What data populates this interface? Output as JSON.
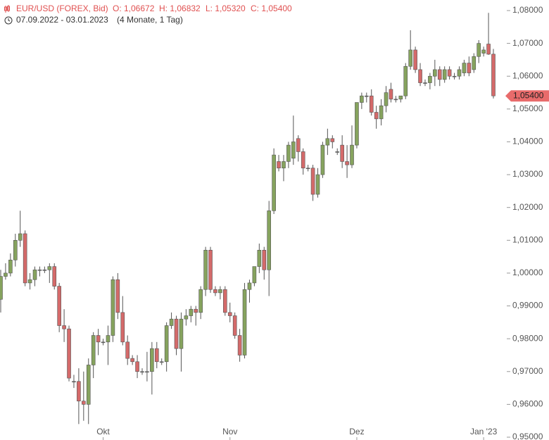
{
  "header": {
    "title": "EUR/USD (FOREX, Bid)",
    "ohlc": [
      "O: 1,06672",
      "H: 1,06832",
      "L: 1,05320",
      "C: 1,05400"
    ],
    "range": "07.09.2022 - 03.01.2023",
    "span": "(4 Monate, 1 Tag)"
  },
  "chart_data": {
    "type": "candlestick",
    "up_color": "#86a35e",
    "down_color": "#d46a6a",
    "last_price_label": "1,05400",
    "open": [
      0.992,
      0.999,
      1.0,
      1.004,
      1.01,
      1.012,
      0.997,
      0.998,
      1.001,
      1.001,
      1.001,
      1.002,
      0.996,
      0.984,
      0.983,
      0.967,
      0.967,
      0.961,
      0.96,
      0.972,
      0.981,
      0.979,
      0.979,
      0.981,
      0.998,
      0.988,
      0.979,
      0.974,
      0.973,
      0.97,
      0.97,
      0.97,
      0.977,
      0.973,
      0.973,
      0.984,
      0.986,
      0.977,
      0.986,
      0.987,
      0.989,
      0.988,
      0.995,
      1.007,
      0.995,
      0.994,
      0.995,
      0.988,
      0.987,
      0.981,
      0.975,
      0.995,
      0.997,
      1.002,
      1.007,
      1.001,
      1.019,
      1.034,
      1.032,
      1.034,
      1.035,
      1.041,
      1.037,
      1.032,
      1.032,
      1.024,
      1.03,
      1.039,
      1.041,
      1.037,
      1.039,
      1.034,
      1.033,
      1.039,
      1.052,
      1.054,
      1.054,
      1.049,
      1.047,
      1.051,
      1.056,
      1.053,
      1.053,
      1.054,
      1.063,
      1.068,
      1.062,
      1.058,
      1.058,
      1.06,
      1.062,
      1.059,
      1.062,
      1.06,
      1.06,
      1.061,
      1.064,
      1.062,
      1.066,
      1.067,
      1.0698,
      1.06672
    ],
    "high": [
      1.001,
      1.003,
      1.006,
      1.012,
      1.019,
      1.013,
      1.0,
      1.002,
      1.002,
      1.002,
      1.003,
      1.003,
      0.997,
      0.989,
      0.984,
      0.969,
      0.971,
      0.97,
      0.974,
      0.982,
      0.983,
      0.98,
      0.984,
      0.999,
      1.0,
      0.993,
      0.981,
      0.975,
      0.975,
      0.971,
      0.976,
      0.979,
      0.979,
      0.974,
      0.985,
      0.988,
      0.987,
      0.988,
      0.989,
      0.99,
      0.99,
      0.996,
      1.008,
      1.008,
      0.996,
      0.996,
      0.996,
      0.991,
      0.988,
      0.983,
      0.997,
      0.998,
      1.002,
      1.009,
      1.008,
      1.022,
      1.038,
      1.036,
      1.036,
      1.04,
      1.048,
      1.042,
      1.038,
      1.033,
      1.033,
      1.032,
      1.04,
      1.044,
      1.042,
      1.038,
      1.042,
      1.039,
      1.045,
      1.052,
      1.055,
      1.055,
      1.056,
      1.051,
      1.053,
      1.057,
      1.058,
      1.054,
      1.054,
      1.064,
      1.074,
      1.069,
      1.064,
      1.059,
      1.061,
      1.065,
      1.063,
      1.063,
      1.063,
      1.061,
      1.063,
      1.065,
      1.066,
      1.067,
      1.071,
      1.069,
      1.0793,
      1.06832
    ],
    "low": [
      0.988,
      0.998,
      0.999,
      1.002,
      1.008,
      0.996,
      0.995,
      0.996,
      0.999,
      1.0,
      0.997,
      0.995,
      0.982,
      0.979,
      0.967,
      0.965,
      0.954,
      0.955,
      0.954,
      0.968,
      0.975,
      0.978,
      0.972,
      0.979,
      0.986,
      0.978,
      0.972,
      0.972,
      0.968,
      0.969,
      0.967,
      0.963,
      0.971,
      0.972,
      0.97,
      0.983,
      0.975,
      0.97,
      0.984,
      0.985,
      0.984,
      0.986,
      0.993,
      0.994,
      0.993,
      0.992,
      0.987,
      0.985,
      0.98,
      0.973,
      0.974,
      0.991,
      0.996,
      1.0,
      0.998,
      0.993,
      1.018,
      1.031,
      1.028,
      1.032,
      1.033,
      1.034,
      1.03,
      1.031,
      1.022,
      1.023,
      1.029,
      1.036,
      1.038,
      1.036,
      1.032,
      1.029,
      1.032,
      1.038,
      1.05,
      1.052,
      1.048,
      1.044,
      1.045,
      1.049,
      1.052,
      1.052,
      1.052,
      1.053,
      1.062,
      1.061,
      1.057,
      1.057,
      1.056,
      1.057,
      1.057,
      1.058,
      1.059,
      1.059,
      1.059,
      1.06,
      1.06,
      1.061,
      1.064,
      1.066,
      1.0665,
      1.0532
    ],
    "close": [
      0.999,
      1.0,
      1.004,
      1.01,
      1.012,
      0.997,
      0.998,
      1.001,
      1.001,
      1.001,
      1.002,
      0.996,
      0.984,
      0.983,
      0.968,
      0.967,
      0.961,
      0.96,
      0.972,
      0.981,
      0.979,
      0.979,
      0.981,
      0.998,
      0.988,
      0.979,
      0.974,
      0.973,
      0.97,
      0.97,
      0.97,
      0.977,
      0.973,
      0.973,
      0.984,
      0.986,
      0.977,
      0.986,
      0.987,
      0.989,
      0.988,
      0.995,
      1.007,
      0.995,
      0.994,
      0.995,
      0.988,
      0.987,
      0.981,
      0.975,
      0.995,
      0.997,
      1.002,
      1.007,
      1.001,
      1.019,
      1.036,
      1.032,
      1.034,
      1.039,
      1.04,
      1.037,
      1.032,
      1.032,
      1.024,
      1.03,
      1.039,
      1.041,
      1.04,
      1.037,
      1.034,
      1.033,
      1.039,
      1.052,
      1.054,
      1.054,
      1.049,
      1.047,
      1.051,
      1.055,
      1.053,
      1.053,
      1.054,
      1.063,
      1.068,
      1.062,
      1.058,
      1.058,
      1.06,
      1.062,
      1.059,
      1.062,
      1.06,
      1.06,
      1.062,
      1.064,
      1.061,
      1.066,
      1.07,
      1.068,
      1.0667,
      1.054
    ],
    "xticks": [
      {
        "value": 21,
        "label": "Okt"
      },
      {
        "value": 47,
        "label": "Nov"
      },
      {
        "value": 73,
        "label": "Dez"
      },
      {
        "value": 99,
        "label": "Jan '23"
      }
    ],
    "ylim": [
      0.95,
      1.08
    ],
    "yticks": [
      {
        "value": 0.95,
        "label": "0,95000"
      },
      {
        "value": 0.96,
        "label": "0,96000"
      },
      {
        "value": 0.97,
        "label": "0,97000"
      },
      {
        "value": 0.98,
        "label": "0,98000"
      },
      {
        "value": 0.99,
        "label": "0,99000"
      },
      {
        "value": 1.0,
        "label": "1,00000"
      },
      {
        "value": 1.01,
        "label": "1,01000"
      },
      {
        "value": 1.02,
        "label": "1,02000"
      },
      {
        "value": 1.03,
        "label": "1,03000"
      },
      {
        "value": 1.04,
        "label": "1,04000"
      },
      {
        "value": 1.05,
        "label": "1,05000"
      },
      {
        "value": 1.06,
        "label": "1,06000"
      },
      {
        "value": 1.07,
        "label": "1,07000"
      },
      {
        "value": 1.08,
        "label": "1,08000"
      }
    ]
  }
}
